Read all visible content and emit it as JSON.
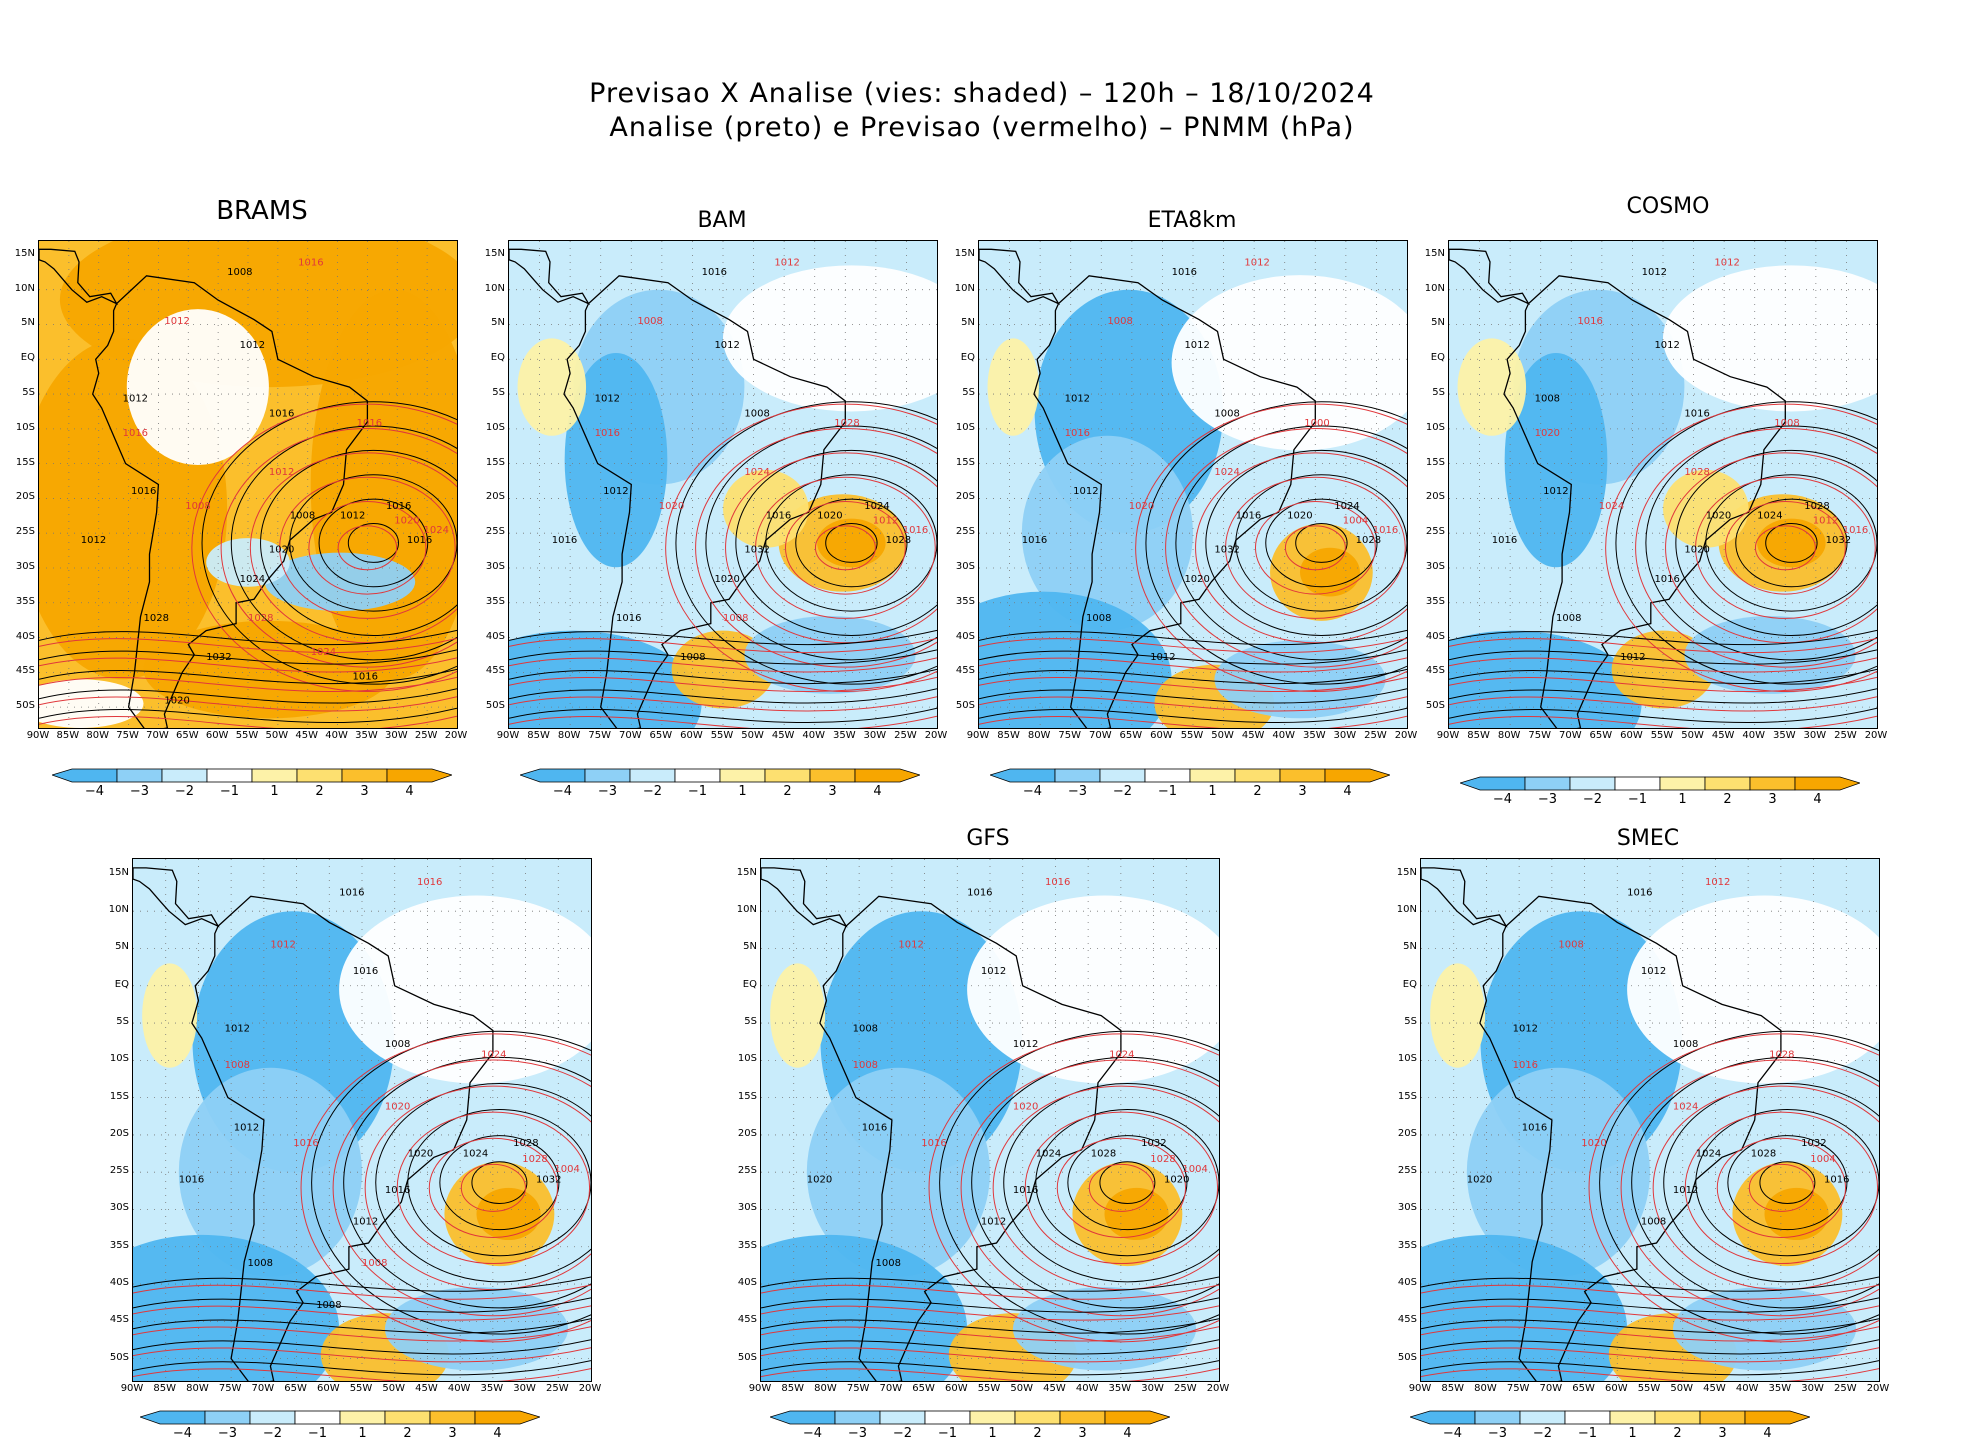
{
  "figure": {
    "title_line1": "Previsao X Analise (vies: shaded) – 120h – 18/10/2024",
    "title_line2": "Analise (preto) e Previsao (vermelho) – PNMM (hPa)"
  },
  "colors": {
    "neg4": "#4fb6f0",
    "neg3": "#8ed0f6",
    "neg2": "#c9ecfb",
    "neg1": "#ffffff",
    "pos1": "#fdf2a8",
    "pos2": "#fde070",
    "pos3": "#fbbf2c",
    "pos4": "#f7a600",
    "analysis_contour": "#000000",
    "forecast_contour": "#e0373b"
  },
  "colorbar": {
    "labels": [
      "−4",
      "−3",
      "−2",
      "−1",
      "1",
      "2",
      "3",
      "4"
    ]
  },
  "axes": {
    "lat_labels": [
      "15N",
      "10N",
      "5N",
      "EQ",
      "5S",
      "10S",
      "15S",
      "20S",
      "25S",
      "30S",
      "35S",
      "40S",
      "45S",
      "50S"
    ],
    "lon_labels": [
      "90W",
      "85W",
      "80W",
      "75W",
      "70W",
      "65W",
      "60W",
      "55W",
      "50W",
      "45W",
      "40W",
      "35W",
      "30W",
      "25W",
      "20W"
    ]
  },
  "panels": [
    {
      "name": "BRAMS",
      "title": "BRAMS",
      "bias": "warm",
      "labels_black": [
        "1008",
        "1012",
        "1012",
        "1016",
        "1016",
        "1012",
        "1008",
        "1012",
        "1016",
        "1016",
        "1020",
        "1024",
        "1028",
        "1032",
        "1016",
        "1020"
      ],
      "labels_red": [
        "1016",
        "1012",
        "1016",
        "1008",
        "1012",
        "1016",
        "1020",
        "1024",
        "1028",
        "1024"
      ]
    },
    {
      "name": "BAM",
      "title": "BAM",
      "bias": "mixed",
      "labels_black": [
        "1016",
        "1012",
        "1012",
        "1008",
        "1012",
        "1016",
        "1016",
        "1020",
        "1024",
        "1028",
        "1032",
        "1020",
        "1016",
        "1008"
      ],
      "labels_red": [
        "1012",
        "1008",
        "1016",
        "1020",
        "1024",
        "1028",
        "1012",
        "1016",
        "1008"
      ]
    },
    {
      "name": "ETA8km",
      "title": "ETA8km",
      "bias": "cold",
      "labels_black": [
        "1016",
        "1012",
        "1012",
        "1008",
        "1012",
        "1016",
        "1016",
        "1020",
        "1024",
        "1028",
        "1032",
        "1020",
        "1008",
        "1012"
      ],
      "labels_red": [
        "1012",
        "1008",
        "1016",
        "1020",
        "1024",
        "1000",
        "1004",
        "1016"
      ]
    },
    {
      "name": "COSMO",
      "title": "COSMO",
      "bias": "mixed",
      "labels_black": [
        "1012",
        "1012",
        "1008",
        "1016",
        "1012",
        "1016",
        "1020",
        "1024",
        "1028",
        "1032",
        "1020",
        "1016",
        "1008",
        "1012"
      ],
      "labels_red": [
        "1012",
        "1016",
        "1020",
        "1024",
        "1028",
        "1008",
        "1012",
        "1016"
      ]
    },
    {
      "name": "unnamed",
      "title": "",
      "bias": "cold",
      "labels_black": [
        "1016",
        "1016",
        "1012",
        "1008",
        "1012",
        "1016",
        "1020",
        "1024",
        "1028",
        "1032",
        "1016",
        "1012",
        "1008",
        "1008"
      ],
      "labels_red": [
        "1016",
        "1012",
        "1008",
        "1016",
        "1020",
        "1024",
        "1028",
        "1004",
        "1008"
      ]
    },
    {
      "name": "GFS",
      "title": "GFS",
      "bias": "cold",
      "labels_black": [
        "1016",
        "1012",
        "1008",
        "1012",
        "1016",
        "1020",
        "1024",
        "1028",
        "1032",
        "1020",
        "1016",
        "1012",
        "1008"
      ],
      "labels_red": [
        "1016",
        "1012",
        "1008",
        "1016",
        "1020",
        "1024",
        "1028",
        "1004"
      ]
    },
    {
      "name": "SMEC",
      "title": "SMEC",
      "bias": "cold",
      "labels_black": [
        "1016",
        "1012",
        "1012",
        "1008",
        "1016",
        "1020",
        "1024",
        "1028",
        "1032",
        "1016",
        "1012",
        "1008"
      ],
      "labels_red": [
        "1012",
        "1008",
        "1016",
        "1020",
        "1024",
        "1028",
        "1004"
      ]
    }
  ]
}
